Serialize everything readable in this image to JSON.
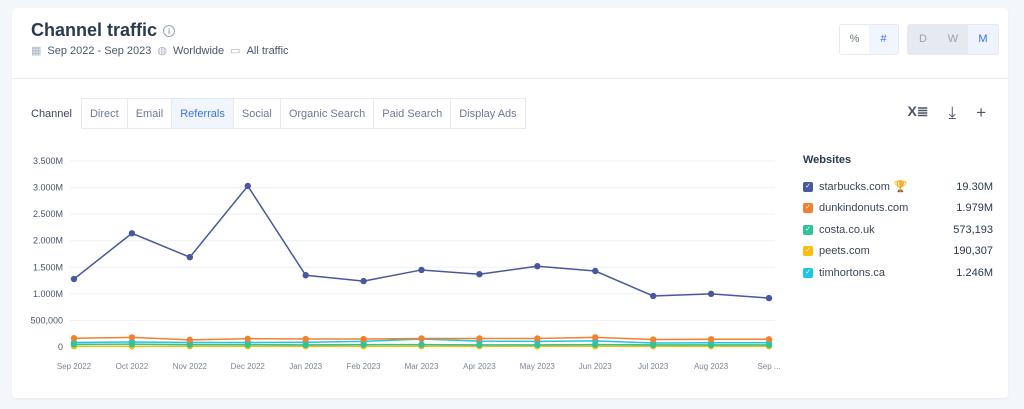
{
  "header": {
    "title": "Channel traffic",
    "date_range": "Sep 2022 - Sep 2023",
    "region": "Worldwide",
    "traffic": "All traffic"
  },
  "metric_toggle": [
    {
      "label": "%",
      "active": false
    },
    {
      "label": "#",
      "active": true
    }
  ],
  "granularity_toggle": [
    {
      "label": "D",
      "active": false
    },
    {
      "label": "W",
      "active": false
    },
    {
      "label": "M",
      "active": true
    }
  ],
  "channel": {
    "label": "Channel",
    "tabs": [
      {
        "label": "Direct"
      },
      {
        "label": "Email"
      },
      {
        "label": "Referrals",
        "active": true
      },
      {
        "label": "Social"
      },
      {
        "label": "Organic Search"
      },
      {
        "label": "Paid Search"
      },
      {
        "label": "Display Ads"
      }
    ]
  },
  "tools": [
    "excel-icon",
    "download-icon",
    "plus-icon"
  ],
  "legend": {
    "title": "Websites",
    "items": [
      {
        "name": "starbucks.com",
        "value": "19.30M",
        "color": "#47599a",
        "trophy": true
      },
      {
        "name": "dunkindonuts.com",
        "value": "1.979M",
        "color": "#f4802d"
      },
      {
        "name": "costa.co.uk",
        "value": "573,193",
        "color": "#2fc39a"
      },
      {
        "name": "peets.com",
        "value": "190,307",
        "color": "#fbbd09"
      },
      {
        "name": "timhortons.ca",
        "value": "1.246M",
        "color": "#1ec6e3"
      }
    ]
  },
  "chart_data": {
    "type": "line",
    "grid": true,
    "legend": "right",
    "x": [
      "Sep 2022",
      "Oct 2022",
      "Nov 2022",
      "Dec 2022",
      "Jan 2023",
      "Feb 2023",
      "Mar 2023",
      "Apr 2023",
      "May 2023",
      "Jun 2023",
      "Jul 2023",
      "Aug 2023",
      "Sep ..."
    ],
    "yticks": [
      "0",
      "500,000",
      "1.000M",
      "1.500M",
      "2.000M",
      "2.500M",
      "3.000M",
      "3.500M"
    ],
    "ylim": [
      0,
      3500000
    ],
    "series": [
      {
        "name": "starbucks.com",
        "color": "#47599a",
        "values": [
          1280000,
          2140000,
          1690000,
          3030000,
          1350000,
          1240000,
          1450000,
          1370000,
          1520000,
          1430000,
          960000,
          1000000,
          920000
        ]
      },
      {
        "name": "dunkindonuts.com",
        "color": "#f4802d",
        "values": [
          165000,
          180000,
          135000,
          155000,
          150000,
          150000,
          160000,
          160000,
          160000,
          180000,
          140000,
          145000,
          145000
        ]
      },
      {
        "name": "costa.co.uk",
        "color": "#2fc39a",
        "values": [
          50000,
          55000,
          45000,
          45000,
          40000,
          45000,
          45000,
          40000,
          40000,
          45000,
          40000,
          40000,
          40000
        ]
      },
      {
        "name": "peets.com",
        "color": "#fbbd09",
        "values": [
          15000,
          15000,
          15000,
          15000,
          15000,
          15000,
          15000,
          15000,
          15000,
          15000,
          14000,
          14000,
          14000
        ]
      },
      {
        "name": "timhortons.ca",
        "color": "#1ec6e3",
        "values": [
          85000,
          95000,
          85000,
          85000,
          90000,
          105000,
          150000,
          110000,
          105000,
          115000,
          75000,
          80000,
          80000
        ]
      }
    ]
  }
}
